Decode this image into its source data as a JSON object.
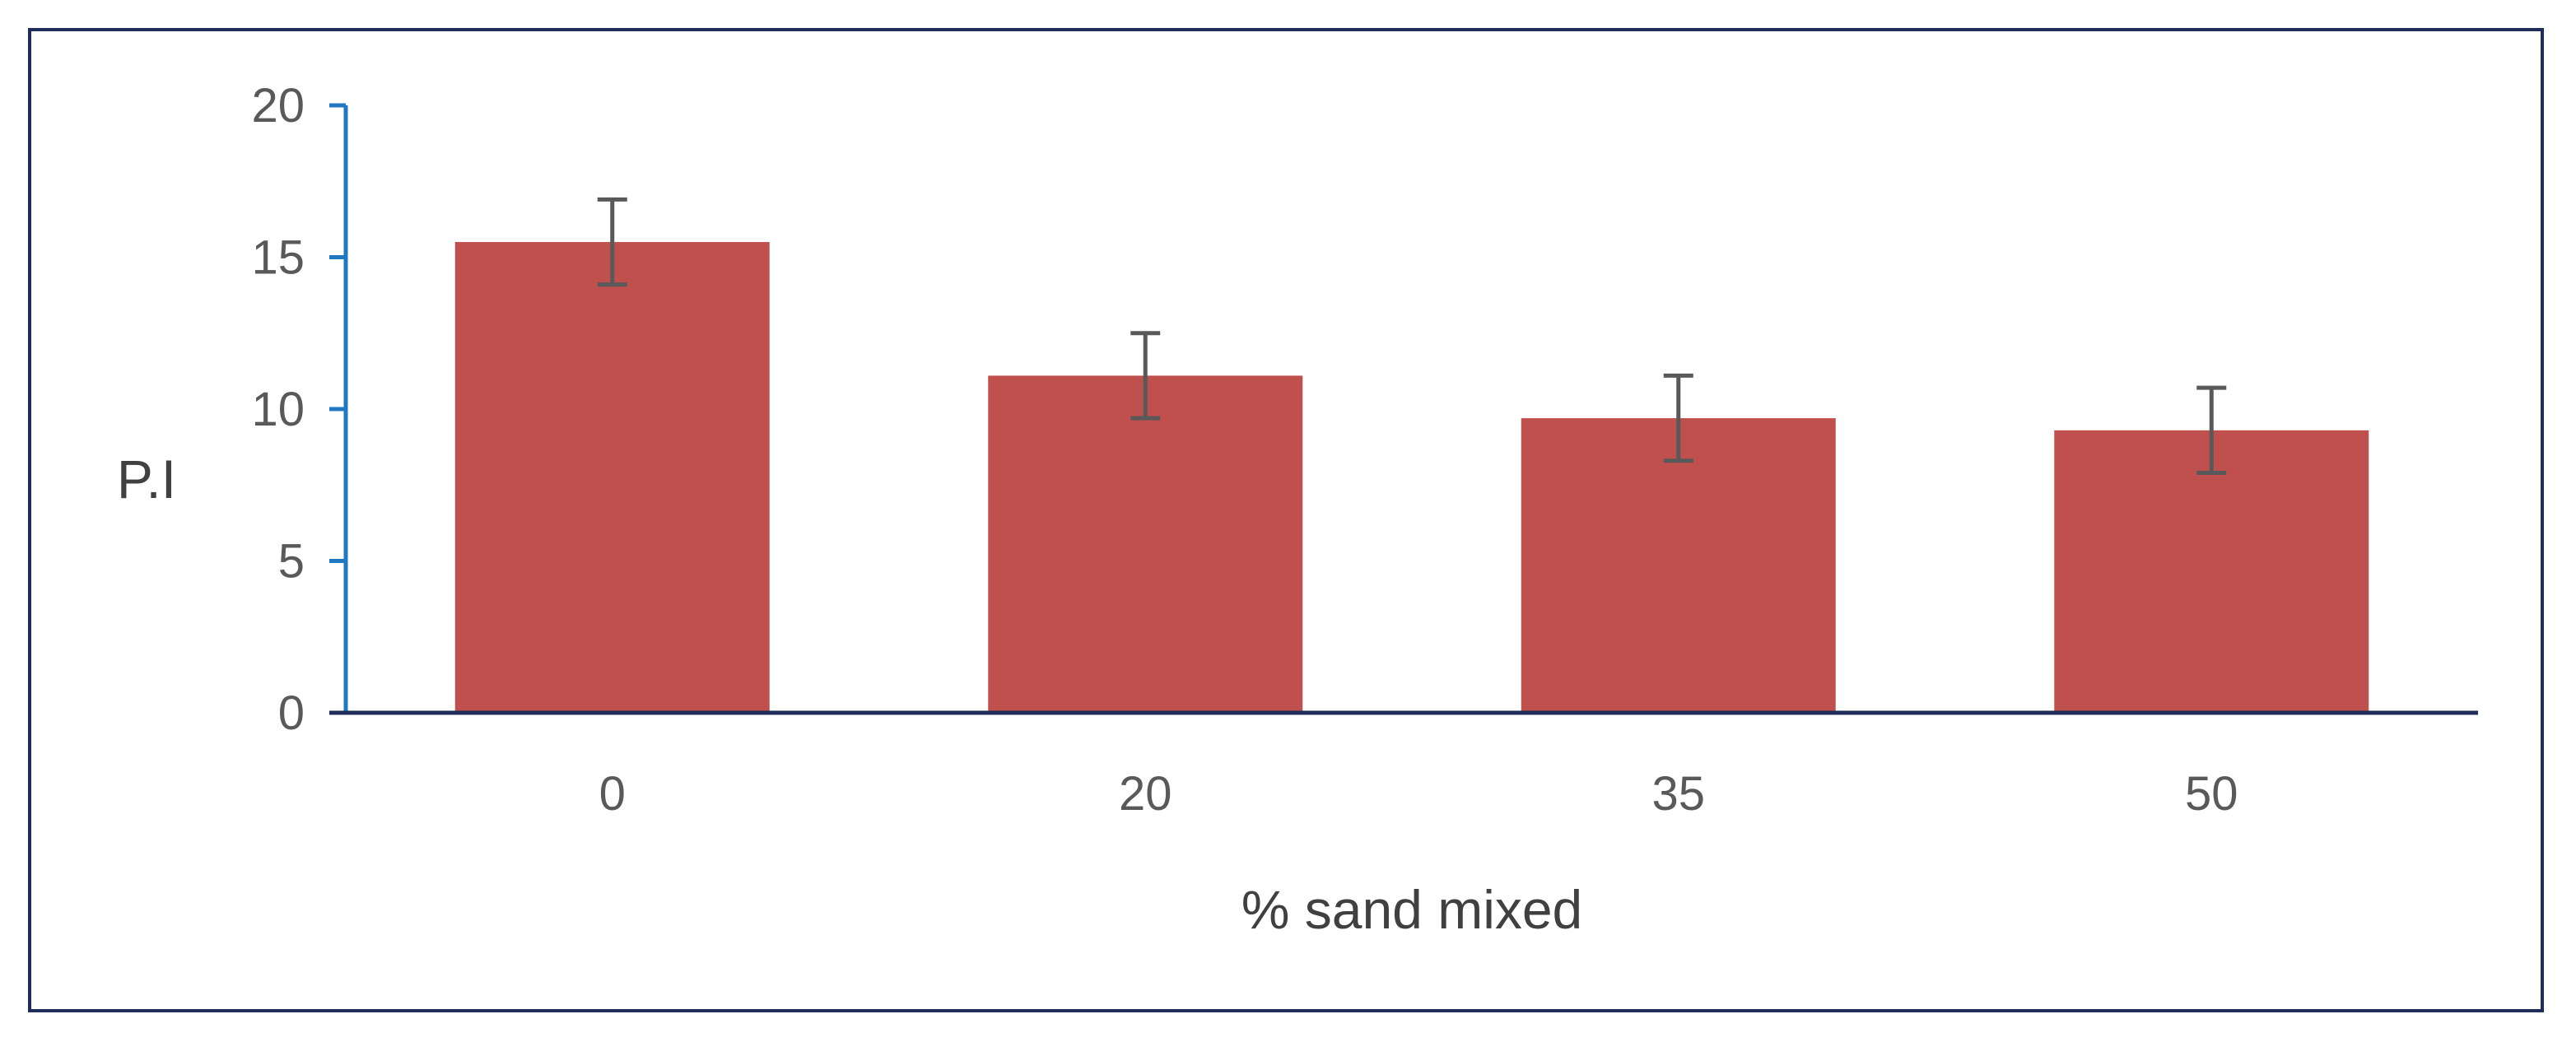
{
  "chart_data": {
    "type": "bar",
    "title": "",
    "xlabel": "% sand mixed",
    "ylabel": "P.I",
    "categories": [
      "0",
      "20",
      "35",
      "50"
    ],
    "values": [
      15.5,
      11.1,
      9.7,
      9.3
    ],
    "error_bars": [
      1.4,
      1.4,
      1.4,
      1.4
    ],
    "ylim": [
      0,
      20
    ],
    "yticks": [
      "0",
      "5",
      "10",
      "15",
      "20"
    ],
    "grid": false,
    "legend": "none",
    "colors": {
      "bar": "#c0504d",
      "error_bar": "#595959",
      "y_axis": "#1f78c1",
      "x_axis": "#1f2d5a",
      "frame": "#1f2d5a"
    }
  }
}
